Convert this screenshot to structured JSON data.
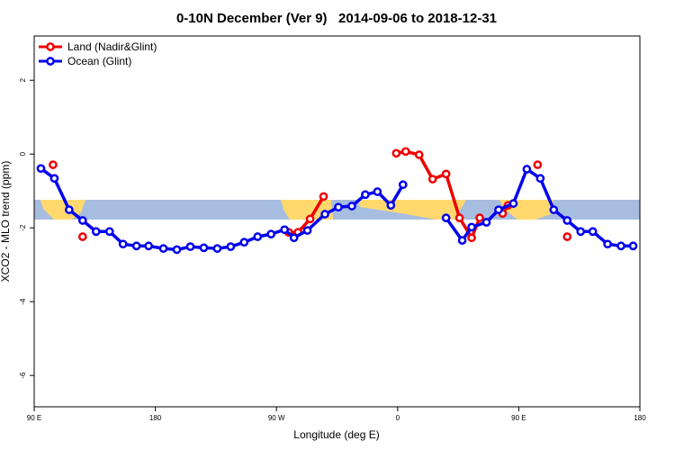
{
  "chart_data": {
    "type": "line",
    "title": "0-10N December (Ver 9)   2014-09-06 to 2018-12-31",
    "xlabel": "Longitude (deg E)",
    "ylabel": "XCO2 - MLO trend (ppm)",
    "xlim": [
      90,
      540
    ],
    "xticks": [
      {
        "value": 90,
        "label": "90 E"
      },
      180,
      {
        "value": 270,
        "label": "90 W"
      },
      {
        "value": 360,
        "label": "0"
      },
      {
        "value": 450,
        "label": "90 E"
      },
      {
        "value": 540,
        "label": "180"
      }
    ],
    "ylim": [
      -6.85,
      3.2
    ],
    "yticks": [
      2,
      0,
      -2,
      -4,
      -6
    ],
    "legend": "top-left",
    "series": [
      {
        "name": "Land (Nadir&Glint)",
        "color": "#ee0000",
        "x": [
          104,
          115,
          126,
          200,
          279,
          286,
          295,
          305,
          330,
          359,
          366,
          376,
          386,
          396,
          406,
          415,
          421,
          430,
          438,
          442,
          450,
          464,
          475,
          486
        ],
        "values": [
          -0.29,
          null,
          -2.24,
          null,
          -2.12,
          -2.12,
          -1.76,
          -1.15,
          null,
          0.02,
          0.07,
          -0.02,
          -0.68,
          -0.54,
          -1.73,
          -2.27,
          -1.73,
          null,
          -1.61,
          -1.39,
          null,
          -0.29,
          null,
          -2.24
        ]
      },
      {
        "name": "Ocean (Glint)",
        "color": "#0000ee",
        "x": [
          95,
          105,
          116,
          126,
          136,
          146,
          156,
          166,
          175,
          186,
          196,
          206,
          216,
          226,
          236,
          246,
          256,
          266,
          276,
          283,
          293,
          306,
          316,
          326,
          336,
          345,
          355,
          364,
          380,
          396,
          408,
          415,
          426,
          435,
          446,
          456,
          466,
          476,
          486,
          496,
          505,
          516,
          526,
          535
        ],
        "values": [
          -0.39,
          -0.66,
          -1.51,
          -1.8,
          -2.1,
          -2.1,
          -2.44,
          -2.49,
          -2.49,
          -2.56,
          -2.59,
          -2.51,
          -2.54,
          -2.56,
          -2.51,
          -2.39,
          -2.24,
          -2.17,
          -2.05,
          -2.27,
          -2.07,
          -1.63,
          -1.44,
          -1.41,
          -1.1,
          -1.02,
          -1.39,
          -0.83,
          null,
          -1.73,
          -2.34,
          -1.98,
          -1.85,
          -1.51,
          -1.34,
          -0.41,
          -0.66,
          -1.51,
          -1.8,
          -2.1,
          -2.1,
          -2.44,
          -2.49,
          -2.49
        ]
      }
    ]
  }
}
